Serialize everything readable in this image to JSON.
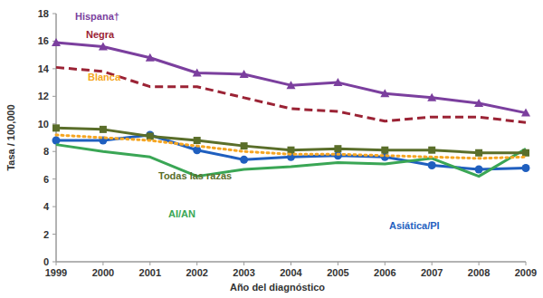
{
  "chart_data": {
    "type": "line",
    "x_label": "Año del diagnóstico",
    "y_label": "Tasa / 100,000",
    "x": [
      1999,
      2000,
      2001,
      2002,
      2003,
      2004,
      2005,
      2006,
      2007,
      2008,
      2009
    ],
    "xlim": [
      1999,
      2009
    ],
    "xticks": [
      1999,
      2000,
      2001,
      2002,
      2003,
      2004,
      2005,
      2006,
      2007,
      2008,
      2009
    ],
    "ylim": [
      0,
      18
    ],
    "yticks": [
      0,
      2,
      4,
      6,
      8,
      10,
      12,
      14,
      16,
      18
    ],
    "grid": false,
    "series": [
      {
        "name": "Hispana†",
        "color": "#7b3f9e",
        "marker": "triangle",
        "line_style": "solid",
        "values": [
          15.9,
          15.6,
          14.8,
          13.7,
          13.6,
          12.8,
          13.0,
          12.2,
          11.9,
          11.5,
          10.8
        ]
      },
      {
        "name": "Negra",
        "color": "#9b2335",
        "marker": "none",
        "line_style": "dashed",
        "values": [
          14.1,
          13.8,
          12.7,
          12.7,
          11.9,
          11.1,
          10.9,
          10.2,
          10.5,
          10.5,
          10.1
        ]
      },
      {
        "name": "Blanca",
        "color": "#f5a623",
        "marker": "none",
        "line_style": "dotted",
        "values": [
          9.2,
          9.0,
          8.8,
          8.4,
          8.0,
          7.8,
          7.8,
          7.7,
          7.6,
          7.5,
          7.6
        ]
      },
      {
        "name": "Todas las razas",
        "color": "#5a6e2a",
        "marker": "square",
        "line_style": "solid",
        "values": [
          9.7,
          9.6,
          9.1,
          8.8,
          8.4,
          8.1,
          8.2,
          8.1,
          8.1,
          7.9,
          7.9
        ]
      },
      {
        "name": "AI/AN",
        "color": "#3aa655",
        "marker": "none",
        "line_style": "solid",
        "values": [
          8.5,
          8.0,
          7.6,
          6.2,
          6.7,
          6.9,
          7.2,
          7.1,
          7.5,
          6.2,
          8.2
        ]
      },
      {
        "name": "Asiática/PI",
        "color": "#1f5fbf",
        "marker": "circle",
        "line_style": "solid",
        "values": [
          8.8,
          8.8,
          9.2,
          8.1,
          7.4,
          7.6,
          7.7,
          7.6,
          7.0,
          6.7,
          6.8
        ]
      }
    ]
  }
}
